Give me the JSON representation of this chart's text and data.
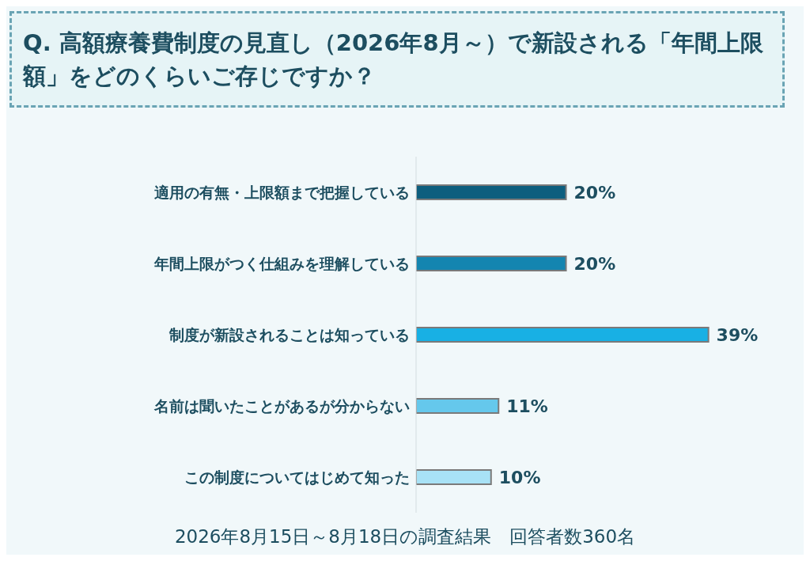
{
  "chart_data": {
    "type": "bar",
    "orientation": "horizontal",
    "title": "Q. 高額療養費制度の見直し（2026年8月～）で新設される「年間上限額」をどのくらいご存じですか？",
    "categories": [
      "適用の有無・上限額まで把握している",
      "年間上限がつく仕組みを理解している",
      "制度が新設されることは知っている",
      "名前は聞いたことがあるが分からない",
      "この制度についてはじめて知った"
    ],
    "values": [
      20,
      20,
      39,
      11,
      10
    ],
    "colors": [
      "#0d5e7e",
      "#1485b0",
      "#18b0e4",
      "#65c8ec",
      "#a8e2f6"
    ],
    "value_labels": [
      "20%",
      "20%",
      "39%",
      "11%",
      "10%"
    ],
    "annotations": [
      "2026年8月15日～8月18日の調査結果　回答者数360名"
    ],
    "grid": false,
    "legend": false
  }
}
